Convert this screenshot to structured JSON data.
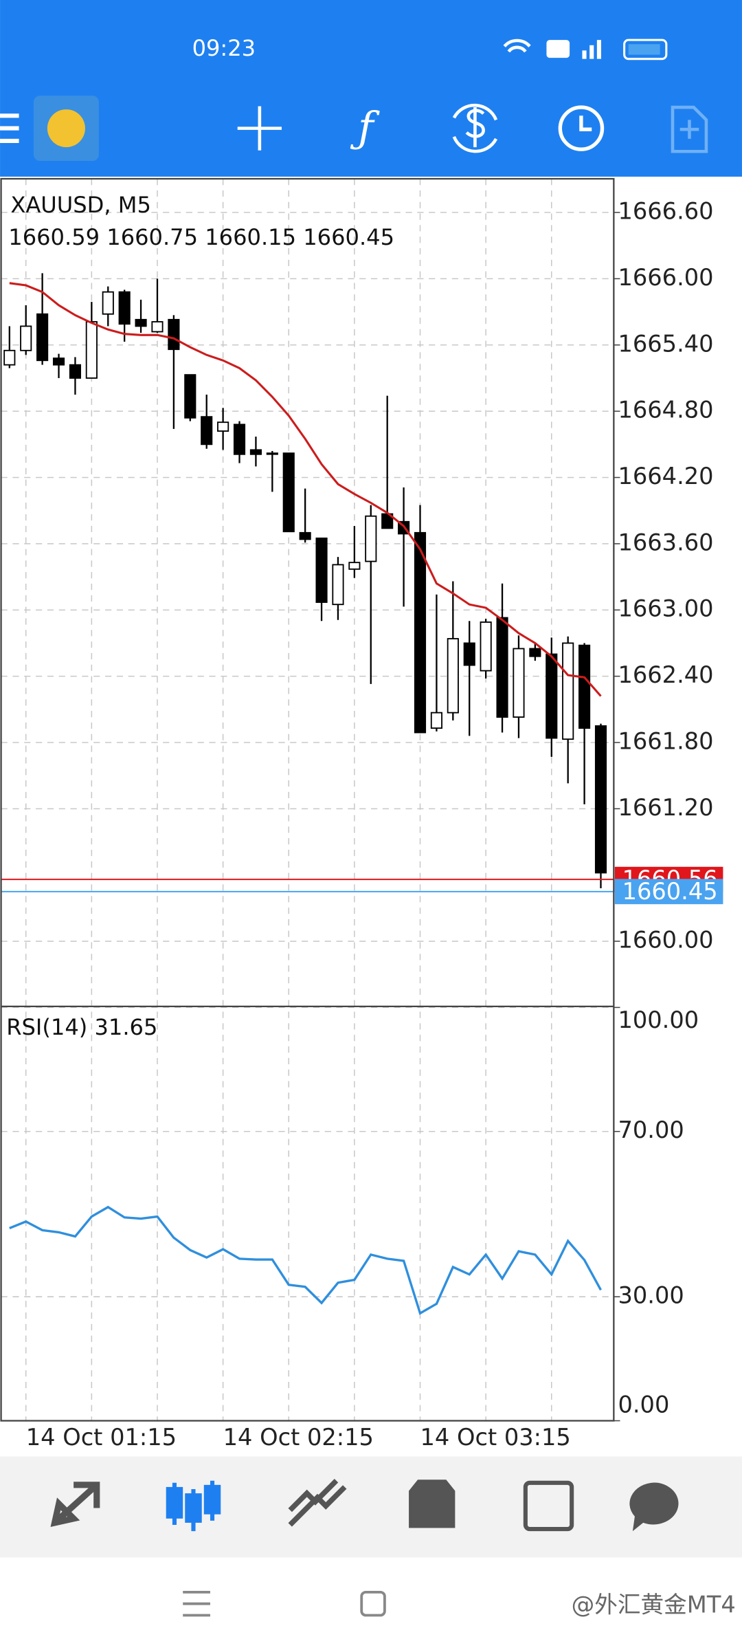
{
  "status_bar": {
    "time": "09:23"
  },
  "chart_data": [
    {
      "type": "candlestick",
      "title": "XAUUSD, M5",
      "subtitle": "1660.59 1660.75 1660.15 1660.45",
      "categories": [
        null,
        "14 Oct 01:15",
        null,
        null,
        null,
        null,
        null,
        null,
        null,
        null,
        null,
        null,
        null,
        "14 Oct 02:15",
        null,
        null,
        null,
        null,
        null,
        null,
        null,
        null,
        null,
        null,
        null,
        "14 Oct 03:15",
        null,
        null,
        null,
        null,
        null,
        null,
        null,
        null,
        null,
        null,
        null
      ],
      "open": [
        1665.22,
        1665.35,
        1665.68,
        1665.28,
        1665.22,
        1665.1,
        1665.68,
        1665.88,
        1665.63,
        1665.52,
        1665.63,
        1665.13,
        1664.75,
        1664.62,
        1664.68,
        1664.45,
        1664.42,
        1664.42,
        1663.7,
        1663.65,
        1663.05,
        1663.37,
        1663.44,
        1663.87,
        1663.8,
        1663.7,
        1661.93,
        1662.07,
        1662.7,
        1662.45,
        1662.93,
        1662.03,
        1662.65,
        1662.6,
        1661.83,
        1662.68,
        1661.95
      ],
      "high": [
        1665.57,
        1665.76,
        1666.05,
        1665.32,
        1665.29,
        1665.79,
        1665.93,
        1665.9,
        1665.81,
        1666.0,
        1665.67,
        1665.13,
        1664.95,
        1664.83,
        1664.71,
        1664.57,
        1664.44,
        1664.42,
        1664.1,
        1663.65,
        1663.48,
        1663.76,
        1663.95,
        1664.94,
        1664.11,
        1663.95,
        1663.14,
        1663.26,
        1662.9,
        1662.92,
        1663.24,
        1662.77,
        1662.7,
        1662.75,
        1662.76,
        1662.7,
        1661.97
      ],
      "low": [
        1665.19,
        1665.31,
        1665.22,
        1665.1,
        1664.95,
        1665.1,
        1665.57,
        1665.43,
        1665.51,
        1665.51,
        1664.64,
        1664.71,
        1664.46,
        1664.45,
        1664.33,
        1664.3,
        1664.07,
        1663.71,
        1663.61,
        1662.9,
        1662.91,
        1663.29,
        1662.33,
        1663.74,
        1663.03,
        1661.89,
        1661.9,
        1662.0,
        1661.86,
        1662.38,
        1661.89,
        1661.84,
        1662.54,
        1661.67,
        1661.43,
        1661.24,
        1660.48
      ],
      "close": [
        1665.35,
        1665.57,
        1665.26,
        1665.22,
        1665.1,
        1665.61,
        1665.88,
        1665.59,
        1665.57,
        1665.61,
        1665.36,
        1664.74,
        1664.5,
        1664.7,
        1664.41,
        1664.41,
        1664.42,
        1663.71,
        1663.64,
        1663.07,
        1663.41,
        1663.43,
        1663.85,
        1663.74,
        1663.69,
        1661.89,
        1662.07,
        1662.74,
        1662.5,
        1662.89,
        1662.03,
        1662.65,
        1662.58,
        1661.84,
        1662.7,
        1661.93,
        1660.62
      ],
      "up_color": "#ffffff",
      "down_color": "#000000",
      "moving_average": {
        "color": "#cc1c1c",
        "values": [
          1665.96,
          1665.94,
          1665.88,
          1665.76,
          1665.67,
          1665.6,
          1665.54,
          1665.5,
          1665.49,
          1665.49,
          1665.46,
          1665.38,
          1665.31,
          1665.26,
          1665.19,
          1665.08,
          1664.93,
          1664.76,
          1664.55,
          1664.32,
          1664.14,
          1664.05,
          1663.97,
          1663.88,
          1663.76,
          1663.55,
          1663.24,
          1663.15,
          1663.05,
          1663.02,
          1662.91,
          1662.79,
          1662.7,
          1662.58,
          1662.41,
          1662.39,
          1662.22
        ]
      },
      "ask": {
        "value": 1660.56,
        "label": "1660.56",
        "color": "#e0161c"
      },
      "bid": {
        "value": 1660.45,
        "label": "1660.45",
        "color": "#4aa3f0"
      },
      "ylim": [
        1659.41,
        1666.905
      ],
      "yticks": [
        {
          "value": 1660,
          "label": "1660.00"
        },
        {
          "value": 1661.2,
          "label": "1661.20"
        },
        {
          "value": 1661.8,
          "label": "1661.80"
        },
        {
          "value": 1662.4,
          "label": "1662.40"
        },
        {
          "value": 1663,
          "label": "1663.00"
        },
        {
          "value": 1663.6,
          "label": "1663.60"
        },
        {
          "value": 1664.2,
          "label": "1664.20"
        },
        {
          "value": 1664.8,
          "label": "1664.80"
        },
        {
          "value": 1665.4,
          "label": "1665.40"
        },
        {
          "value": 1666,
          "label": "1666.00"
        },
        {
          "value": 1666.6,
          "label": "1666.60"
        }
      ],
      "grid": true
    },
    {
      "type": "line",
      "title": "RSI(14) 31.65",
      "color": "#2f8fdd",
      "values": [
        46.6,
        48.2,
        46.1,
        45.6,
        44.6,
        49.4,
        51.7,
        49.2,
        48.9,
        49.4,
        44.3,
        41.3,
        39.5,
        41.5,
        39.2,
        39.0,
        39.0,
        32.9,
        32.4,
        28.5,
        33.4,
        34.1,
        40.2,
        39.2,
        38.7,
        26.0,
        28.3,
        37.2,
        35.4,
        40.2,
        34.4,
        41.0,
        40.2,
        35.4,
        43.5,
        38.9,
        31.65
      ],
      "ylim": [
        0,
        100
      ],
      "yticks": [
        {
          "value": 0,
          "label": "0.00"
        },
        {
          "value": 30,
          "label": "30.00"
        },
        {
          "value": 70,
          "label": "70.00"
        },
        {
          "value": 100,
          "label": "100.00"
        }
      ],
      "grid": true
    }
  ],
  "watermark": "@外汇黄金MT4"
}
